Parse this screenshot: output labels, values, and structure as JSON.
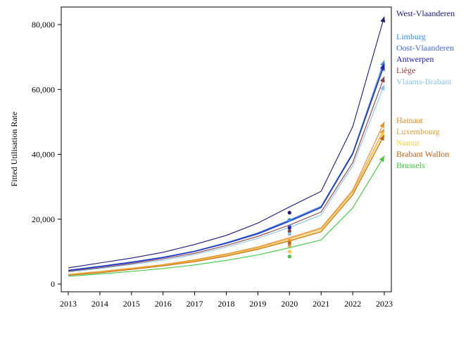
{
  "chart_data": {
    "type": "line",
    "ylabel": "Fitted Utilisation Rate",
    "xlabel": "",
    "x": [
      2013,
      2014,
      2015,
      2016,
      2017,
      2018,
      2019,
      2020,
      2021,
      2022,
      2023
    ],
    "xlim": [
      2013,
      2023
    ],
    "ylim": [
      -2000,
      85000
    ],
    "yticks": [
      0,
      20000,
      40000,
      60000,
      80000
    ],
    "ytick_labels": [
      "0",
      "20,000",
      "40,000",
      "60,000",
      "80,000"
    ],
    "grid": false,
    "legend_position": "right",
    "series": [
      {
        "name": "West-Vlaanderen",
        "color": "#1a1a80",
        "values": [
          5000,
          6500,
          8000,
          9800,
          12200,
          15000,
          18800,
          23800,
          28600,
          48500,
          82500
        ],
        "observed_2020": 22000
      },
      {
        "name": "Limburg",
        "color": "#3a8ee6",
        "values": [
          4300,
          5500,
          6800,
          8300,
          10200,
          12800,
          15800,
          19800,
          24000,
          40500,
          69000
        ],
        "observed_2020": 19800
      },
      {
        "name": "Oost-Vlaanderen",
        "color": "#4169e1",
        "values": [
          4100,
          5300,
          6600,
          8100,
          10000,
          12500,
          15400,
          19300,
          23500,
          40000,
          67500
        ],
        "observed_2020": 17800
      },
      {
        "name": "Antwerpen",
        "color": "#1f1fbf",
        "values": [
          4200,
          5400,
          6700,
          8200,
          10100,
          12600,
          15600,
          19500,
          23700,
          40200,
          68000
        ],
        "observed_2020": 17300
      },
      {
        "name": "Liège",
        "color": "#8b4040",
        "values": [
          3900,
          5000,
          6300,
          7800,
          9500,
          11900,
          14700,
          18200,
          22200,
          37500,
          64000
        ],
        "observed_2020": 16300
      },
      {
        "name": "Vlaams-Brabant",
        "color": "#87c5f0",
        "values": [
          3700,
          4800,
          6000,
          7400,
          9100,
          11400,
          14100,
          17500,
          21300,
          36500,
          61500
        ],
        "observed_2020": 15400
      },
      {
        "name": "Hainaut",
        "color": "#f08c1e",
        "values": [
          3000,
          3900,
          4900,
          6000,
          7500,
          9300,
          11500,
          14300,
          17300,
          29000,
          50000
        ],
        "observed_2020": 13300
      },
      {
        "name": "Luxembourg",
        "color": "#e6a03c",
        "values": [
          2900,
          3800,
          4800,
          5900,
          7300,
          9100,
          11200,
          14000,
          17000,
          28500,
          48000
        ],
        "observed_2020": 11800
      },
      {
        "name": "Namur",
        "color": "#f5d23c",
        "values": [
          2800,
          3600,
          4600,
          5700,
          7100,
          8800,
          10900,
          13600,
          16500,
          28000,
          47000
        ],
        "observed_2020": 10000
      },
      {
        "name": "Brabant Wallon",
        "color": "#c06418",
        "values": [
          2700,
          3500,
          4500,
          5600,
          6900,
          8600,
          10700,
          13300,
          16100,
          27500,
          46000
        ],
        "observed_2020": 12600
      },
      {
        "name": "Brussels",
        "color": "#3cc83c",
        "values": [
          2400,
          3100,
          3900,
          4800,
          5900,
          7300,
          9000,
          11200,
          13600,
          23500,
          39500
        ],
        "observed_2020": 8500
      }
    ]
  }
}
